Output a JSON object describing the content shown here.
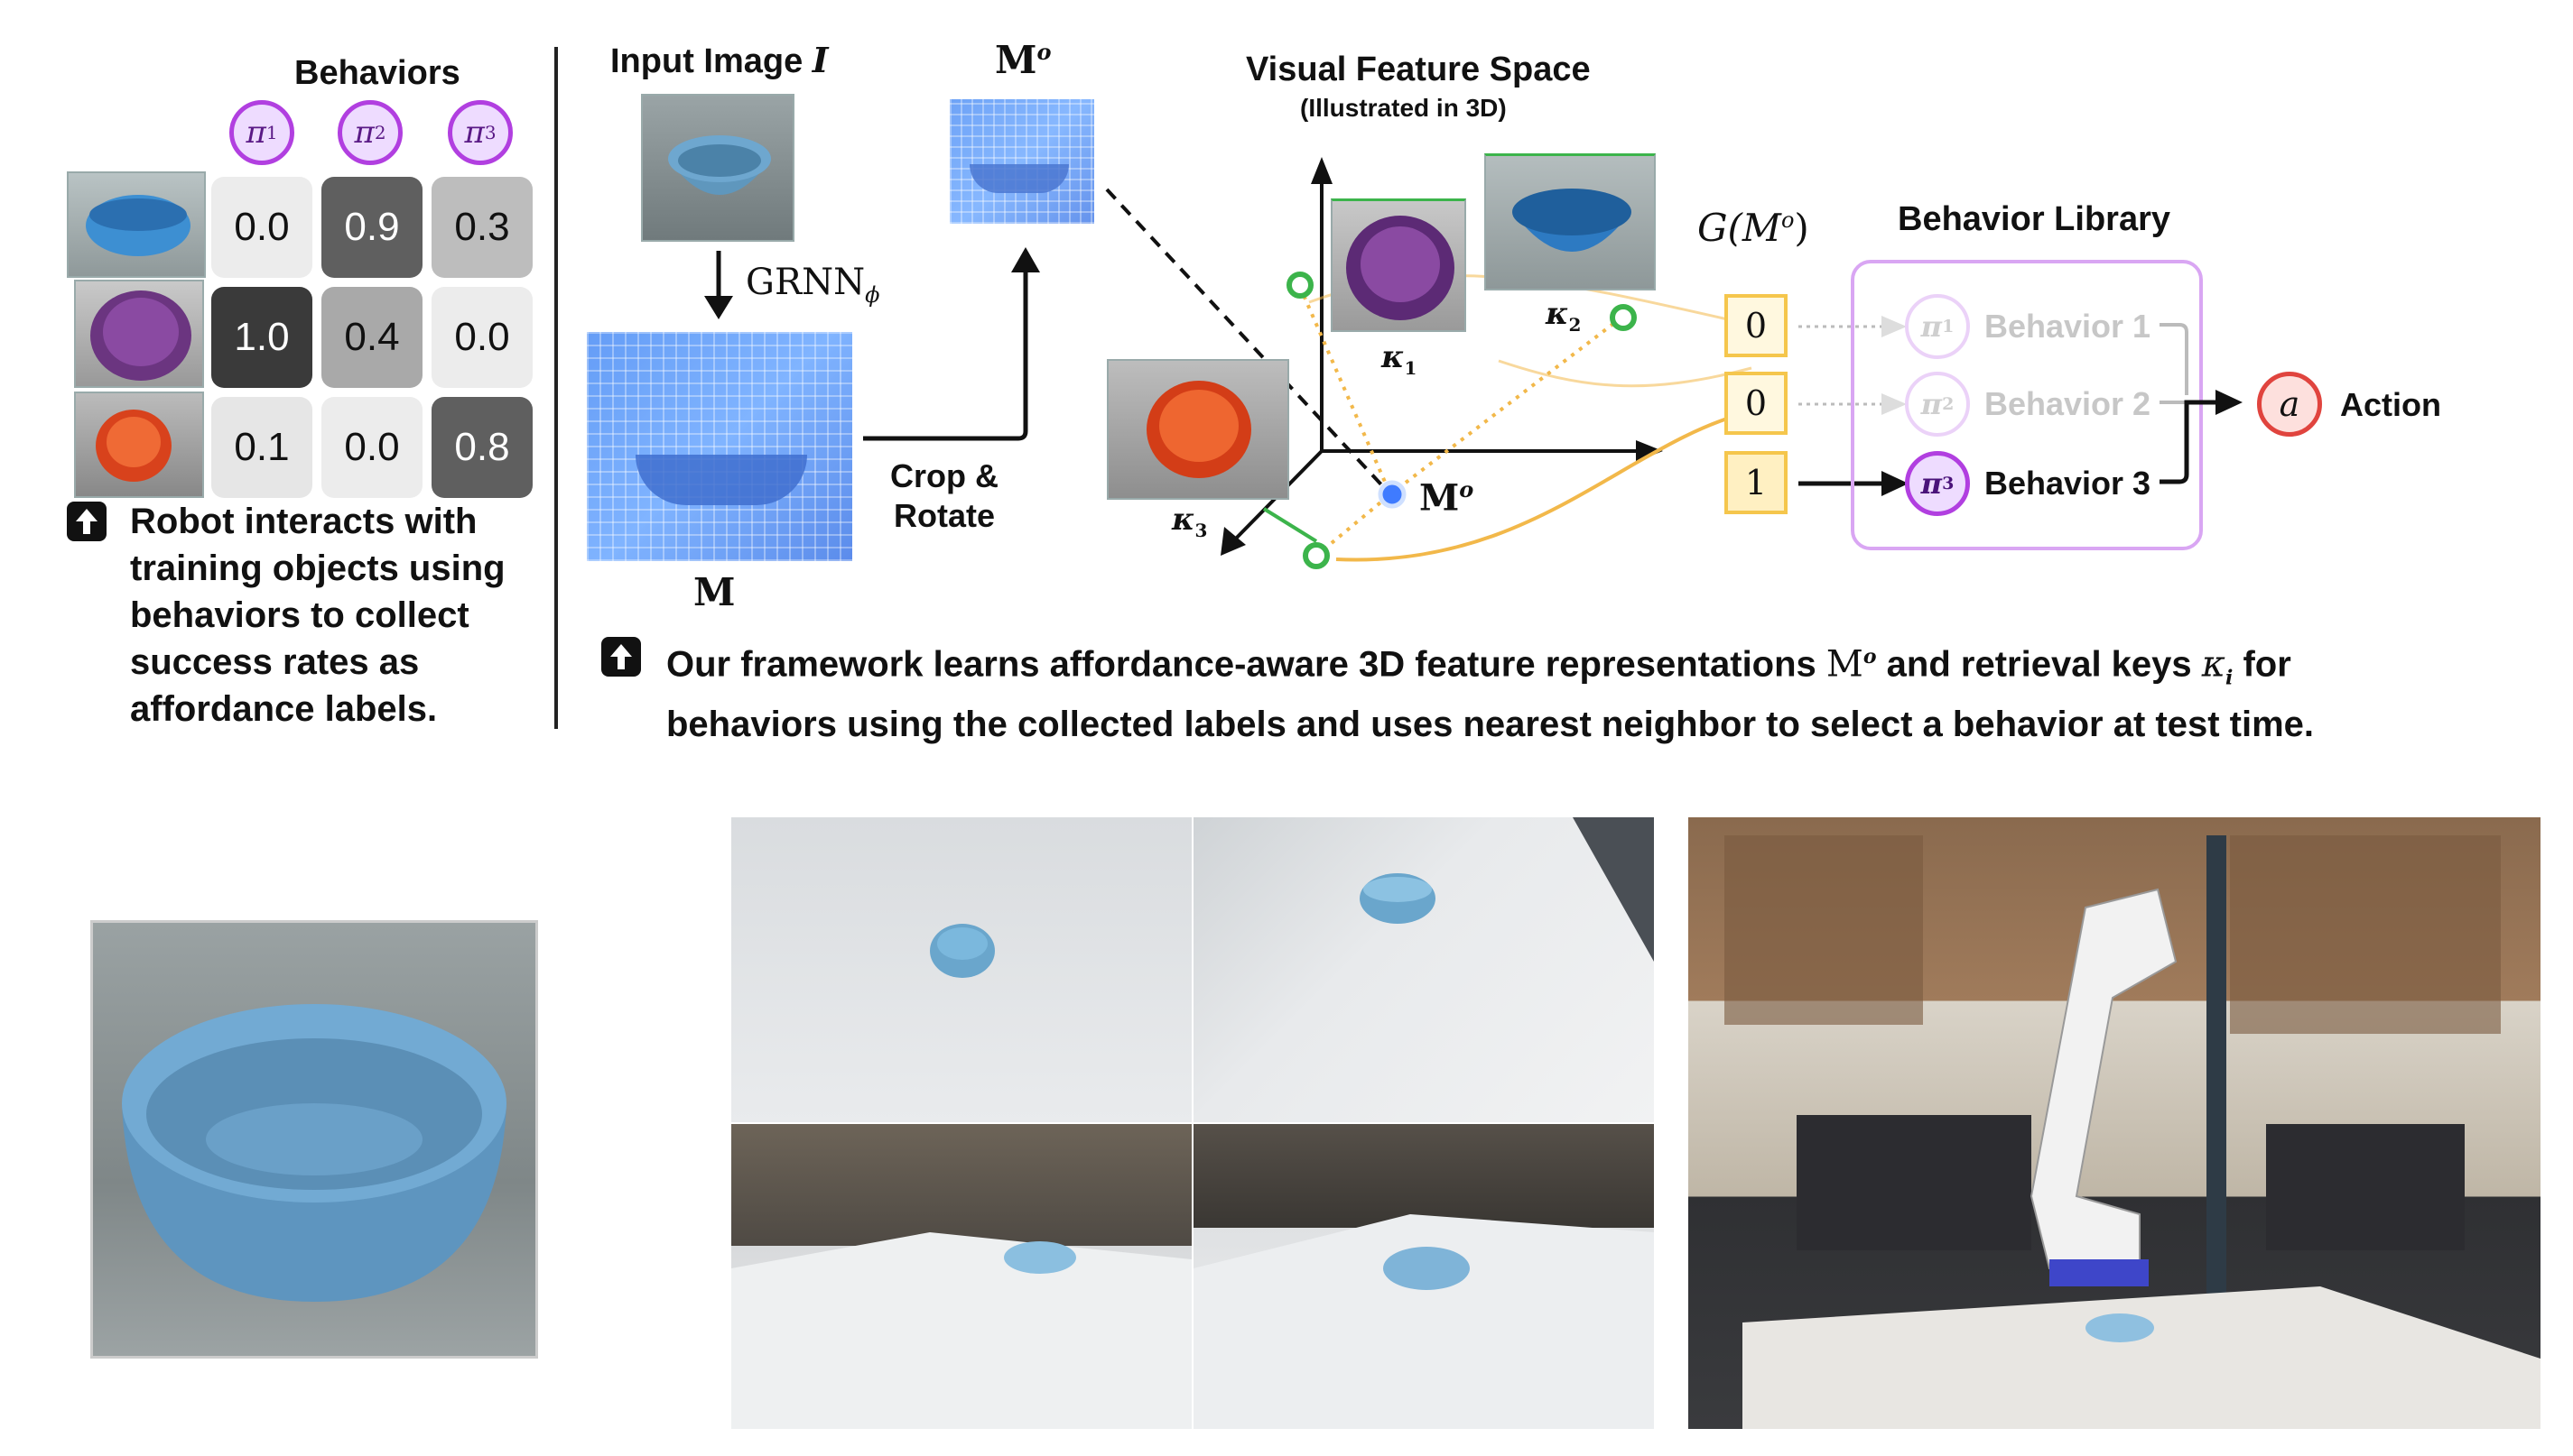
{
  "left_panel": {
    "heading": "Behaviors",
    "pi_headers": [
      {
        "sym": "π",
        "sub": "1"
      },
      {
        "sym": "π",
        "sub": "2"
      },
      {
        "sym": "π",
        "sub": "3"
      }
    ],
    "rows": [
      {
        "object": "blue bowl",
        "values": [
          "0.0",
          "0.9",
          "0.3"
        ]
      },
      {
        "object": "purple bowl",
        "values": [
          "1.0",
          "0.4",
          "0.0"
        ]
      },
      {
        "object": "orange bowl",
        "values": [
          "0.1",
          "0.0",
          "0.8"
        ]
      }
    ],
    "caption_lines": [
      "Robot interacts with",
      "training objects using",
      "behaviors to collect",
      "success rates as",
      "affordance labels."
    ]
  },
  "middle_panel": {
    "input_label": "Input Image",
    "input_symbol": "I",
    "grnn_label": "GRNN",
    "grnn_sub": "ϕ",
    "m_label": "M",
    "mo_label": "M",
    "mo_sup": "o",
    "crop_label": [
      "Crop &",
      "Rotate"
    ]
  },
  "feature_space": {
    "title": "Visual Feature Space",
    "subtitle": "(Illustrated in 3D)",
    "keys": [
      {
        "sym": "κ",
        "sub": "1"
      },
      {
        "sym": "κ",
        "sub": "2"
      },
      {
        "sym": "κ",
        "sub": "3"
      }
    ],
    "query_label": "M",
    "query_sup": "o"
  },
  "selection": {
    "g_label": "G(M",
    "g_sup": "o",
    "g_close": ")",
    "values": [
      "0",
      "0",
      "1"
    ]
  },
  "library": {
    "title": "Behavior Library",
    "items": [
      {
        "sym": "π",
        "sub": "1",
        "label": "Behavior 1",
        "active": false
      },
      {
        "sym": "π",
        "sub": "2",
        "label": "Behavior 2",
        "active": false
      },
      {
        "sym": "π",
        "sub": "3",
        "label": "Behavior 3",
        "active": true
      }
    ],
    "action_symbol": "a",
    "action_label": "Action"
  },
  "main_caption": {
    "part1": "Our framework learns affordance-aware 3D feature representations ",
    "mo": "M",
    "mo_sup": "o",
    "part2": " and retrieval keys ",
    "kappa": "κ",
    "kappa_sub": "i",
    "part3": " for",
    "line2": "behaviors using the collected labels and uses nearest neighbor to select a behavior at test time."
  },
  "colors": {
    "purple_accent": "#b13fe0",
    "green_key": "#3cb44b",
    "blue_query": "#3f7bff",
    "yellow_link": "#f2b84a",
    "library_border": "#d9a6f3",
    "action_red": "#e0443e"
  }
}
